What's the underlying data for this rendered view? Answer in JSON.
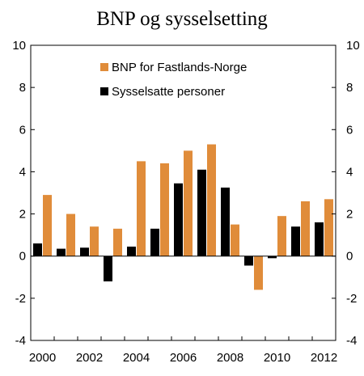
{
  "chart_data": {
    "type": "bar",
    "title": "BNP og sysselsetting",
    "xlabel": "",
    "ylabel": "",
    "categories": [
      "2000",
      "2001",
      "2002",
      "2003",
      "2004",
      "2005",
      "2006",
      "2007",
      "2008",
      "2009",
      "2010",
      "2011",
      "2012"
    ],
    "x_tick_labels": [
      "2000",
      "2002",
      "2004",
      "2006",
      "2008",
      "2010",
      "2012"
    ],
    "ylim": [
      -4,
      10
    ],
    "y_ticks": [
      -4,
      -2,
      0,
      2,
      4,
      6,
      8,
      10
    ],
    "y_tick_labels": [
      "-4",
      "-2",
      "0",
      "2",
      "4",
      "6",
      "8",
      "10"
    ],
    "secondary_y_axis": true,
    "grid": false,
    "legend_position": "top-left",
    "series": [
      {
        "name": "Sysselsatte personer",
        "color": "#000000",
        "values": [
          0.6,
          0.35,
          0.4,
          -1.2,
          0.45,
          1.3,
          3.45,
          4.1,
          3.25,
          -0.45,
          -0.1,
          1.4,
          1.6
        ]
      },
      {
        "name": "BNP for Fastlands-Norge",
        "color": "#E08C3A",
        "values": [
          2.9,
          2.0,
          1.4,
          1.3,
          4.5,
          4.4,
          5.0,
          5.3,
          1.5,
          -1.6,
          1.9,
          2.6,
          2.7
        ]
      }
    ],
    "legend_order": [
      1,
      0
    ]
  }
}
